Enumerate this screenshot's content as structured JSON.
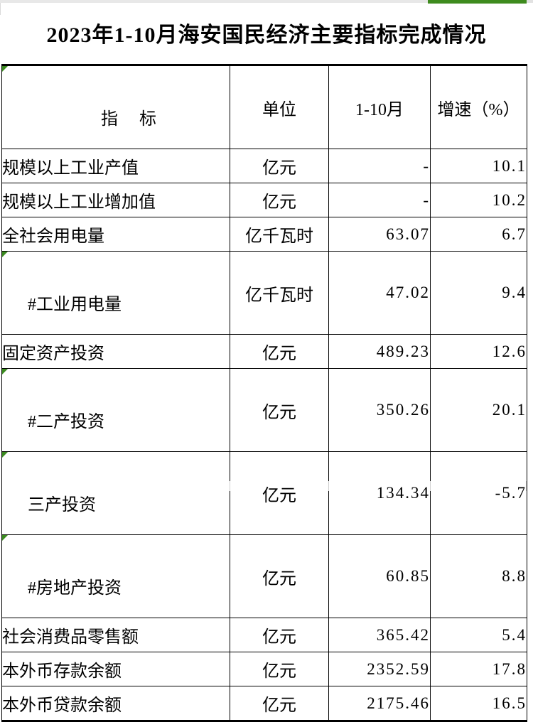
{
  "page": {
    "title": "2023年1-10月海安国民经济主要指标完成情况"
  },
  "colors": {
    "selection_green": "#3e8b1e",
    "grid_gray": "#e8e8e8",
    "border_black": "#000000",
    "error_marker_green": "#3a8a1f"
  },
  "table": {
    "headers": {
      "indicator": "指　 标",
      "unit": "单位",
      "period": "1-10月",
      "growth": "增速（%）"
    },
    "rows": [
      {
        "indicator": "规模以上工业产值",
        "unit": "亿元",
        "value": "-",
        "growth": "10.1"
      },
      {
        "indicator": "规模以上工业增加值",
        "unit": "亿元",
        "value": "-",
        "growth": "10.2"
      },
      {
        "indicator": "全社会用电量",
        "unit": "亿千瓦时",
        "value": "63.07",
        "growth": "6.7"
      },
      {
        "indicator": "#工业用电量",
        "unit": "亿千瓦时",
        "value": "47.02",
        "growth": "9.4"
      },
      {
        "indicator": "固定资产投资",
        "unit": "亿元",
        "value": "489.23",
        "growth": "12.6"
      },
      {
        "indicator": "#二产投资",
        "unit": "亿元",
        "value": "350.26",
        "growth": "20.1"
      },
      {
        "indicator": "三产投资",
        "unit": "亿元",
        "value": "134.34",
        "growth": "-5.7"
      },
      {
        "indicator": "#房地产投资",
        "unit": "亿元",
        "value": "60.85",
        "growth": "8.8"
      },
      {
        "indicator": "社会消费品零售额",
        "unit": "亿元",
        "value": "365.42",
        "growth": "5.4"
      },
      {
        "indicator": "本外币存款余额",
        "unit": "亿元",
        "value": "2352.59",
        "growth": "17.8"
      },
      {
        "indicator": "本外币贷款余额",
        "unit": "亿元",
        "value": "2175.46",
        "growth": "16.5"
      }
    ]
  },
  "chart_data": {
    "type": "table",
    "title": "2023年1-10月海安国民经济主要指标完成情况",
    "columns": [
      "指标",
      "单位",
      "1-10月",
      "增速（%）"
    ],
    "rows": [
      [
        "规模以上工业产值",
        "亿元",
        null,
        10.1
      ],
      [
        "规模以上工业增加值",
        "亿元",
        null,
        10.2
      ],
      [
        "全社会用电量",
        "亿千瓦时",
        63.07,
        6.7
      ],
      [
        "#工业用电量",
        "亿千瓦时",
        47.02,
        9.4
      ],
      [
        "固定资产投资",
        "亿元",
        489.23,
        12.6
      ],
      [
        "#二产投资",
        "亿元",
        350.26,
        20.1
      ],
      [
        "三产投资",
        "亿元",
        134.34,
        -5.7
      ],
      [
        "#房地产投资",
        "亿元",
        60.85,
        8.8
      ],
      [
        "社会消费品零售额",
        "亿元",
        365.42,
        5.4
      ],
      [
        "本外币存款余额",
        "亿元",
        2352.59,
        17.8
      ],
      [
        "本外币贷款余额",
        "亿元",
        2175.46,
        16.5
      ]
    ]
  }
}
